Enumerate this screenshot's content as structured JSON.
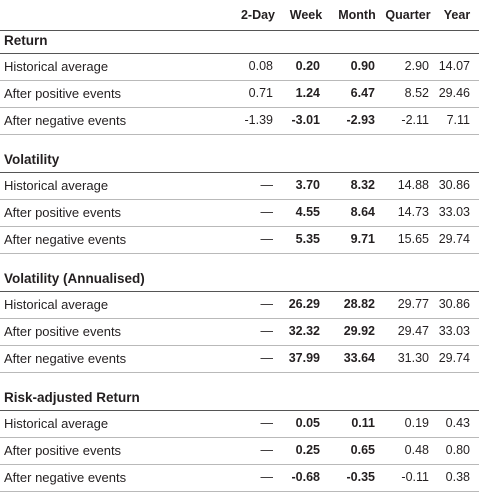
{
  "columns": [
    "2-Day",
    "Week",
    "Month",
    "Quarter",
    "Year"
  ],
  "sections": [
    {
      "title": "Return",
      "rows": [
        {
          "label": "Historical average",
          "values": [
            "0.08",
            "0.20",
            "0.90",
            "2.90",
            "14.07"
          ]
        },
        {
          "label": "After positive events",
          "values": [
            "0.71",
            "1.24",
            "6.47",
            "8.52",
            "29.46"
          ]
        },
        {
          "label": "After negative events",
          "values": [
            "-1.39",
            "-3.01",
            "-2.93",
            "-2.11",
            "7.11"
          ]
        }
      ]
    },
    {
      "title": "Volatility",
      "rows": [
        {
          "label": "Historical average",
          "values": [
            "—",
            "3.70",
            "8.32",
            "14.88",
            "30.86"
          ]
        },
        {
          "label": "After positive events",
          "values": [
            "—",
            "4.55",
            "8.64",
            "14.73",
            "33.03"
          ]
        },
        {
          "label": "After negative events",
          "values": [
            "—",
            "5.35",
            "9.71",
            "15.65",
            "29.74"
          ]
        }
      ]
    },
    {
      "title": "Volatility (Annualised)",
      "rows": [
        {
          "label": "Historical average",
          "values": [
            "—",
            "26.29",
            "28.82",
            "29.77",
            "30.86"
          ]
        },
        {
          "label": "After positive events",
          "values": [
            "—",
            "32.32",
            "29.92",
            "29.47",
            "33.03"
          ]
        },
        {
          "label": "After negative events",
          "values": [
            "—",
            "37.99",
            "33.64",
            "31.30",
            "29.74"
          ]
        }
      ]
    },
    {
      "title": "Risk-adjusted Return",
      "rows": [
        {
          "label": "Historical average",
          "values": [
            "—",
            "0.05",
            "0.11",
            "0.19",
            "0.43"
          ]
        },
        {
          "label": "After positive events",
          "values": [
            "—",
            "0.25",
            "0.65",
            "0.48",
            "0.80"
          ]
        },
        {
          "label": "After negative events",
          "values": [
            "—",
            "-0.68",
            "-0.35",
            "-0.11",
            "0.38"
          ]
        }
      ]
    }
  ]
}
